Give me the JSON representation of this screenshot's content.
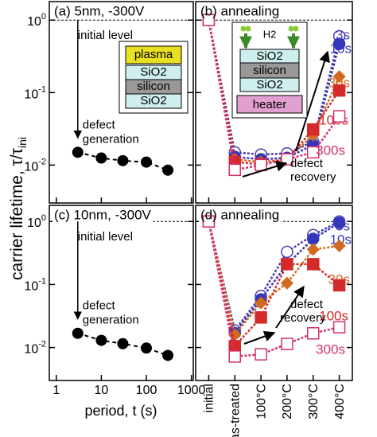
{
  "chart_data": [
    {
      "type": "scatter",
      "title": "(a) 5nm, -300V",
      "y_label": "carrier lifetime, τ/τ",
      "y_label_sub": "ini",
      "x": [
        3,
        10,
        30,
        100,
        300
      ],
      "values": [
        0.015,
        0.0125,
        0.0115,
        0.011,
        0.0085
      ],
      "color": "#000000",
      "xlog": true,
      "ylog": true,
      "xlim": [
        0.7,
        1100
      ],
      "xticks": [
        1,
        10,
        100,
        1000
      ],
      "ylim": [
        0.003,
        1.8
      ],
      "yticks": [
        {
          "value": 1,
          "label": "10^0"
        },
        {
          "value": 0.1,
          "label": "10^-1"
        },
        {
          "value": 0.01,
          "label": "10^-2"
        }
      ],
      "ref_line": 1,
      "annotations": [
        "initial level",
        "defect",
        "generation"
      ],
      "inset_layers": [
        "plasma",
        "SiO2",
        "silicon",
        "SiO2"
      ]
    },
    {
      "type": "line",
      "title": "(b) annealing",
      "ylog": true,
      "ylim": [
        0.003,
        1.8
      ],
      "yticks": [
        1,
        0.1,
        0.01
      ],
      "ref_line": 1,
      "annotations": [
        "defect",
        "recovery"
      ],
      "inset_layers": [
        "H2",
        "SiO2",
        "silicon",
        "SiO2",
        "heater"
      ],
      "series": [
        {
          "name": "3s",
          "color": "#4b3fb0",
          "marker": "circle-open",
          "values": [
            1,
            0.015,
            0.014,
            0.0145,
            0.021,
            0.6
          ]
        },
        {
          "name": "10s",
          "color": "#3636b8",
          "marker": "circle",
          "values": [
            1,
            0.013,
            0.012,
            0.0126,
            0.019,
            0.47
          ]
        },
        {
          "name": "30s",
          "color": "#d2691e",
          "marker": "diamond",
          "values": [
            1,
            0.012,
            0.011,
            0.012,
            0.026,
            0.166
          ]
        },
        {
          "name": "100s",
          "color": "#d42a2a",
          "marker": "square",
          "values": [
            1,
            0.011,
            0.0103,
            0.012,
            0.031,
            0.107
          ]
        },
        {
          "name": "300s",
          "color": "#d4306e",
          "marker": "square-open",
          "values": [
            1,
            0.0086,
            0.01,
            0.012,
            0.015,
            0.047
          ]
        }
      ]
    },
    {
      "type": "scatter",
      "title": "(c) 10nm, -300V",
      "x_label": "period, t (s)",
      "x": [
        3,
        10,
        30,
        100,
        300
      ],
      "values": [
        0.0168,
        0.013,
        0.0115,
        0.0098,
        0.0075
      ],
      "color": "#000000",
      "xlog": true,
      "ylog": true,
      "xlim": [
        0.7,
        1100
      ],
      "xticks": [
        1,
        10,
        100,
        1000
      ],
      "ylim": [
        0.003,
        1.8
      ],
      "yticks": [
        {
          "value": 1,
          "label": "10^0"
        },
        {
          "value": 0.1,
          "label": "10^-1"
        },
        {
          "value": 0.01,
          "label": "10^-2"
        }
      ],
      "ref_line": 1,
      "annotations": [
        "initial level",
        "defect",
        "generation"
      ]
    },
    {
      "type": "line",
      "title": "(d) annealing",
      "ylog": true,
      "ylim": [
        0.003,
        1.8
      ],
      "categories": [
        "initial",
        "as-treated",
        "100°C",
        "200°C",
        "300°C",
        "400°C"
      ],
      "yticks": [
        1,
        0.1,
        0.01
      ],
      "ref_line": 1,
      "annotations": [
        "defect",
        "recovery"
      ],
      "series": [
        {
          "name": "3s",
          "color": "#4b3fb0",
          "marker": "circle-open",
          "values": [
            1,
            0.0187,
            0.066,
            0.33,
            0.61,
            1.0
          ]
        },
        {
          "name": "10s",
          "color": "#3636b8",
          "marker": "circle",
          "values": [
            1,
            0.017,
            0.058,
            0.21,
            0.53,
            0.95
          ]
        },
        {
          "name": "30s",
          "color": "#d2691e",
          "marker": "diamond",
          "values": [
            1,
            0.016,
            0.051,
            0.105,
            0.36,
            0.41
          ]
        },
        {
          "name": "100s",
          "color": "#d42a2a",
          "marker": "square",
          "values": [
            1,
            0.0105,
            0.03,
            0.21,
            0.21,
            0.097
          ]
        },
        {
          "name": "300s",
          "color": "#d4306e",
          "marker": "square-open",
          "values": [
            1,
            0.0072,
            0.0078,
            0.0114,
            0.0168,
            0.021
          ]
        }
      ]
    }
  ]
}
